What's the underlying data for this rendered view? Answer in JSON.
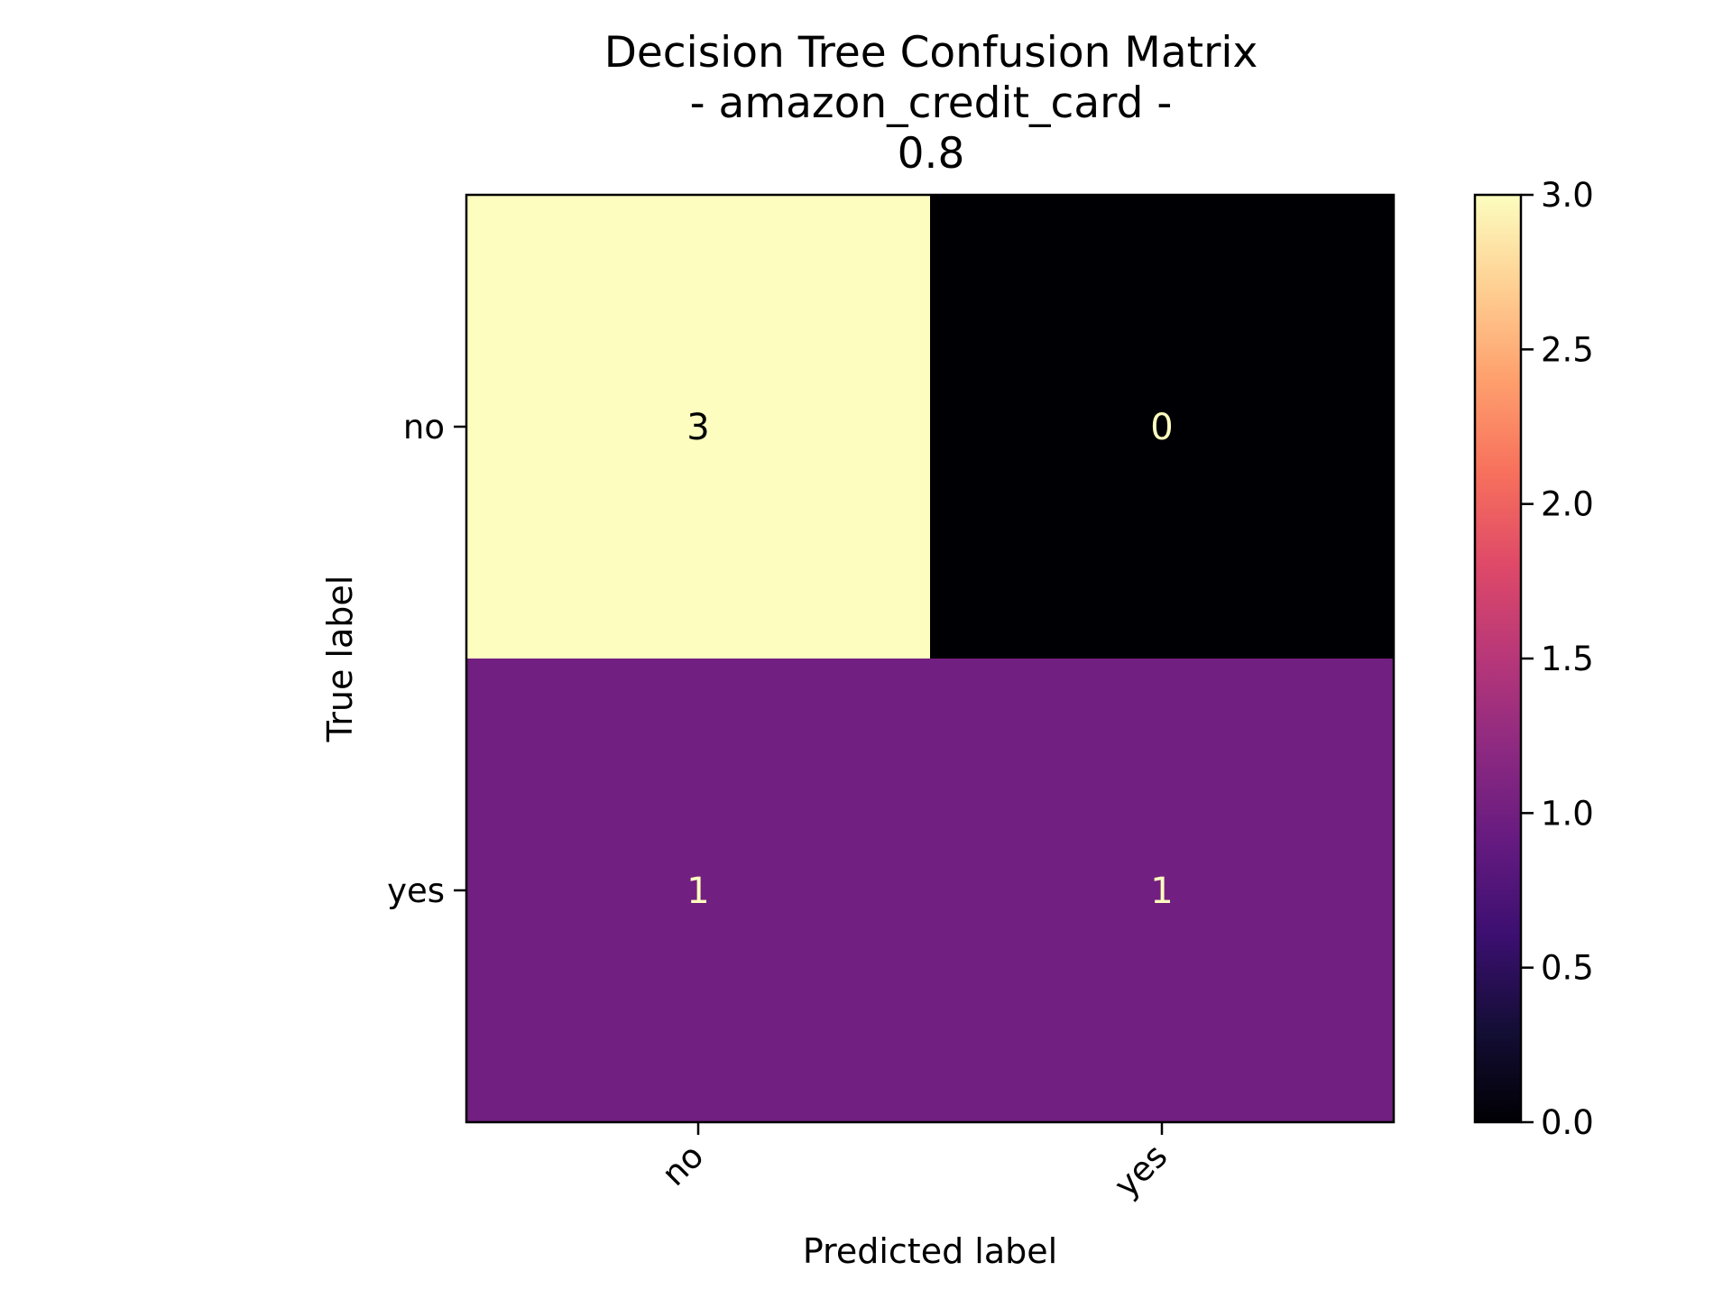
{
  "chart_data": {
    "type": "heatmap",
    "title_lines": [
      "Decision Tree Confusion Matrix",
      "- amazon_credit_card -",
      "0.8"
    ],
    "xlabel": "Predicted label",
    "ylabel": "True label",
    "x_categories": [
      "no",
      "yes"
    ],
    "y_categories": [
      "no",
      "yes"
    ],
    "values": [
      [
        3,
        0
      ],
      [
        1,
        1
      ]
    ],
    "colormap": "magma",
    "colorbar": {
      "range": [
        0,
        3
      ],
      "ticks": [
        "0.0",
        "0.5",
        "1.0",
        "1.5",
        "2.0",
        "2.5",
        "3.0"
      ]
    },
    "cell_text_colors": {
      "dark": "#000000",
      "light": "#fcfdbf"
    }
  }
}
